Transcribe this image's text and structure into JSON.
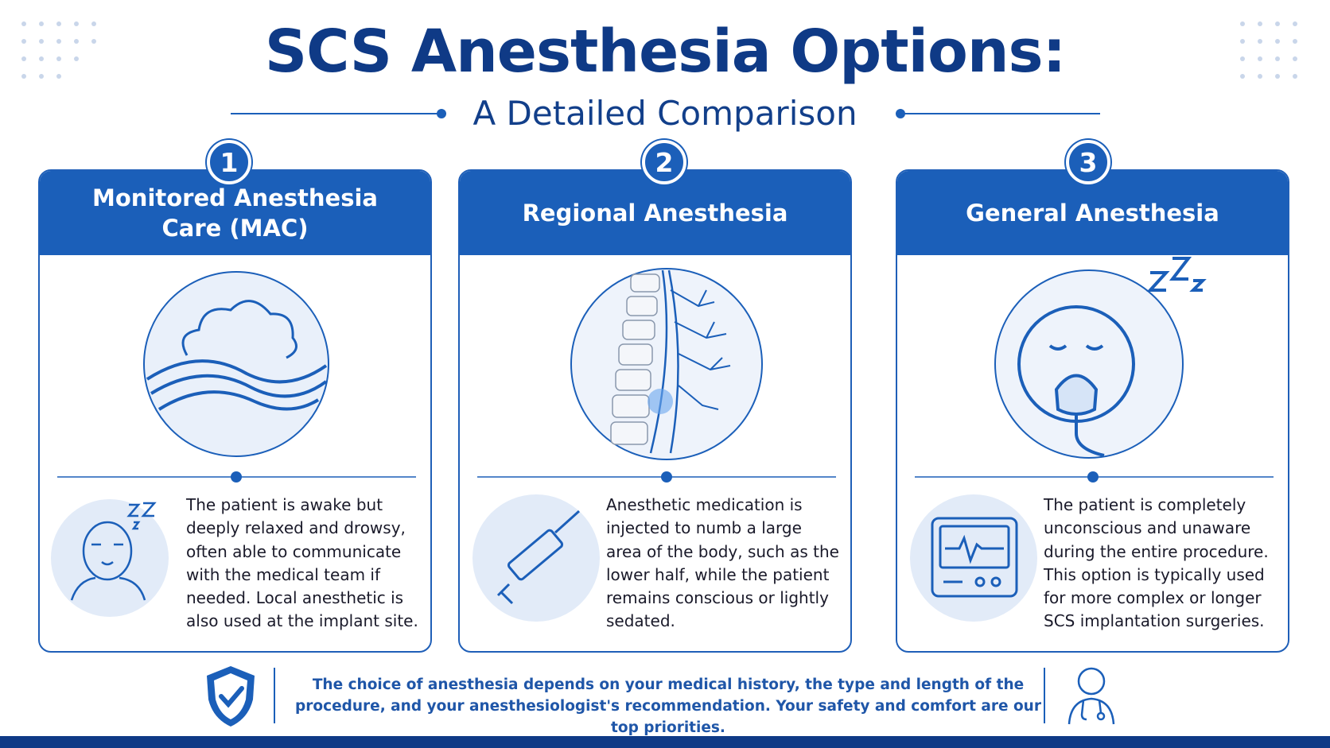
{
  "header": {
    "title": "SCS Anesthesia Options:",
    "subtitle": "A Detailed Comparison"
  },
  "cards": [
    {
      "number": "1",
      "title": "Monitored Anesthesia Care (MAC)",
      "description": "The patient is awake but deeply relaxed and drowsy, often able to communicate with the medical team if needed. Local anesthetic is also used at the implant site."
    },
    {
      "number": "2",
      "title": "Regional Anesthesia",
      "description": "Anesthetic medication is injected to numb a large area of the body, such as the lower half, while the patient remains conscious or lightly sedated."
    },
    {
      "number": "3",
      "title": "General Anesthesia",
      "description": "The patient is completely unconscious and unaware during the entire procedure. This option is typically used for more complex or longer SCS implantation surgeries."
    }
  ],
  "footer": {
    "text": "The choice of anesthesia depends on your medical history, the type and length of the procedure, and your anesthesiologist's recommendation. Your safety and comfort are our top priorities."
  }
}
